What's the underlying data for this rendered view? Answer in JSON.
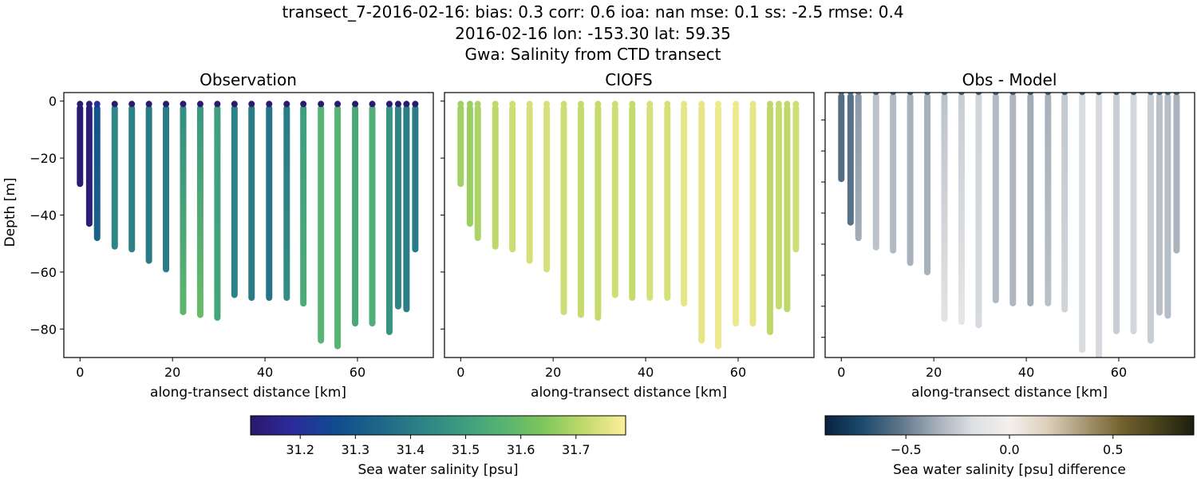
{
  "chart_data": {
    "type": "scatter",
    "suptitle": [
      "transect_7-2016-02-16: bias: 0.3  corr: 0.6  ioa: nan  mse: 0.1  ss: -2.5  rmse: 0.4",
      "2016-02-16 lon: -153.30 lat: 59.35",
      "Gwa: Salinity from CTD transect"
    ],
    "stations": [
      {
        "x": 0.0,
        "top": 1,
        "bottom": 29,
        "obs": [
          31.12,
          31.12,
          31.12
        ],
        "model": 31.68
      },
      {
        "x": 2.0,
        "top": 1,
        "bottom": 43,
        "obs": [
          31.13,
          31.13,
          31.13
        ],
        "model": 31.67
      },
      {
        "x": 3.7,
        "top": 1,
        "bottom": 48,
        "obs": [
          31.2,
          31.28,
          31.33
        ],
        "model": 31.69
      },
      {
        "x": 7.5,
        "top": 1,
        "bottom": 51,
        "obs": [
          31.12,
          31.43,
          31.43
        ],
        "model": 31.71
      },
      {
        "x": 11.2,
        "top": 1,
        "bottom": 52,
        "obs": [
          31.12,
          31.42,
          31.42
        ],
        "model": 31.73
      },
      {
        "x": 14.9,
        "top": 1,
        "bottom": 56,
        "obs": [
          31.12,
          31.4,
          31.4
        ],
        "model": 31.74
      },
      {
        "x": 18.6,
        "top": 1,
        "bottom": 59,
        "obs": [
          31.12,
          31.4,
          31.4
        ],
        "model": 31.74
      },
      {
        "x": 22.3,
        "top": 1,
        "bottom": 74,
        "obs": [
          31.12,
          31.45,
          31.58
        ],
        "model": 31.73
      },
      {
        "x": 26.0,
        "top": 1,
        "bottom": 75,
        "obs": [
          31.12,
          31.48,
          31.6
        ],
        "model": 31.72
      },
      {
        "x": 29.7,
        "top": 1,
        "bottom": 76,
        "obs": [
          31.12,
          31.5,
          31.52
        ],
        "model": 31.72
      },
      {
        "x": 33.4,
        "top": 1,
        "bottom": 68,
        "obs": [
          31.12,
          31.42,
          31.42
        ],
        "model": 31.73
      },
      {
        "x": 37.1,
        "top": 1,
        "bottom": 69,
        "obs": [
          31.12,
          31.4,
          31.4
        ],
        "model": 31.72
      },
      {
        "x": 40.9,
        "top": 1,
        "bottom": 69,
        "obs": [
          31.12,
          31.38,
          31.38
        ],
        "model": 31.74
      },
      {
        "x": 44.7,
        "top": 1,
        "bottom": 69,
        "obs": [
          31.12,
          31.4,
          31.45
        ],
        "model": 31.74
      },
      {
        "x": 48.3,
        "top": 1,
        "bottom": 71,
        "obs": [
          31.12,
          31.5,
          31.54
        ],
        "model": 31.76
      },
      {
        "x": 52.1,
        "top": 1,
        "bottom": 84,
        "obs": [
          31.12,
          31.57,
          31.57
        ],
        "model": 31.76
      },
      {
        "x": 55.7,
        "top": 1,
        "bottom": 86,
        "obs": [
          31.12,
          31.57,
          31.57
        ],
        "model": 31.77
      },
      {
        "x": 59.5,
        "top": 1,
        "bottom": 78,
        "obs": [
          31.12,
          31.53,
          31.53
        ],
        "model": 31.77
      },
      {
        "x": 63.2,
        "top": 1,
        "bottom": 78,
        "obs": [
          31.12,
          31.55,
          31.55
        ],
        "model": 31.76
      },
      {
        "x": 66.9,
        "top": 1,
        "bottom": 81,
        "obs": [
          31.12,
          31.47,
          31.47
        ],
        "model": 31.71
      },
      {
        "x": 68.8,
        "top": 1,
        "bottom": 72,
        "obs": [
          31.12,
          31.43,
          31.43
        ],
        "model": 31.72
      },
      {
        "x": 70.6,
        "top": 1,
        "bottom": 73,
        "obs": [
          31.12,
          31.41,
          31.41
        ],
        "model": 31.71
      },
      {
        "x": 72.5,
        "top": 1,
        "bottom": 52,
        "obs": [
          31.12,
          31.4,
          31.4
        ],
        "model": 31.73
      }
    ],
    "panels": [
      {
        "title": "Observation",
        "xlabel": "along-transect distance [km]",
        "ylabel": "Depth [m]",
        "xlim": [
          -3.5,
          76.4
        ],
        "ylim": [
          -90,
          3
        ],
        "xticks": [
          0,
          20,
          40,
          60
        ],
        "yticks": [
          0,
          -20,
          -40,
          -60,
          -80
        ],
        "ytick_labels": [
          "0",
          "−20",
          "−40",
          "−60",
          "−80"
        ],
        "show_ytick_labels": true,
        "field": "obs"
      },
      {
        "title": "CIOFS",
        "xlabel": "along-transect distance [km]",
        "xlim": [
          -3.5,
          76.4
        ],
        "ylim": [
          -90,
          3
        ],
        "xticks": [
          0,
          20,
          40,
          60
        ],
        "yticks": [
          0,
          -20,
          -40,
          -60,
          -80
        ],
        "show_ytick_labels": false,
        "field": "model"
      },
      {
        "title": "Obs - Model",
        "xlabel": "along-transect distance [km]",
        "xlim": [
          -3.5,
          76.4
        ],
        "ylim": [
          -86.5,
          -1.2
        ],
        "xticks": [
          0,
          20,
          40,
          60
        ],
        "yticks": [
          -10,
          -20,
          -30,
          -40,
          -50,
          -60,
          -70,
          -80
        ],
        "show_ytick_labels": false,
        "field": "diff"
      }
    ],
    "colorbars": [
      {
        "label": "Sea water salinity [psu]",
        "range": [
          31.11,
          31.79
        ],
        "ticks": [
          31.2,
          31.3,
          31.4,
          31.5,
          31.6,
          31.7
        ],
        "tick_labels": [
          "31.2",
          "31.3",
          "31.4",
          "31.5",
          "31.6",
          "31.7"
        ],
        "colormap": "haline",
        "stops": [
          "#2a186c",
          "#2c2a9a",
          "#0f4b8f",
          "#1c6488",
          "#2c7f86",
          "#3a9a80",
          "#55b274",
          "#7cc65b",
          "#c2d96b",
          "#fdef9a"
        ]
      },
      {
        "label": "Sea water salinity [psu] difference",
        "range": [
          -0.89,
          0.89
        ],
        "ticks": [
          -0.5,
          0.0,
          0.5
        ],
        "tick_labels": [
          "−0.5",
          "0.0",
          "0.5"
        ],
        "colormap": "diff",
        "stops": [
          "#08233e",
          "#1c4a6c",
          "#5c7388",
          "#a3adb8",
          "#dde0e3",
          "#f4f0ed",
          "#ddd1bd",
          "#a99a77",
          "#75632f",
          "#48421c",
          "#1c1e0f"
        ]
      }
    ]
  }
}
